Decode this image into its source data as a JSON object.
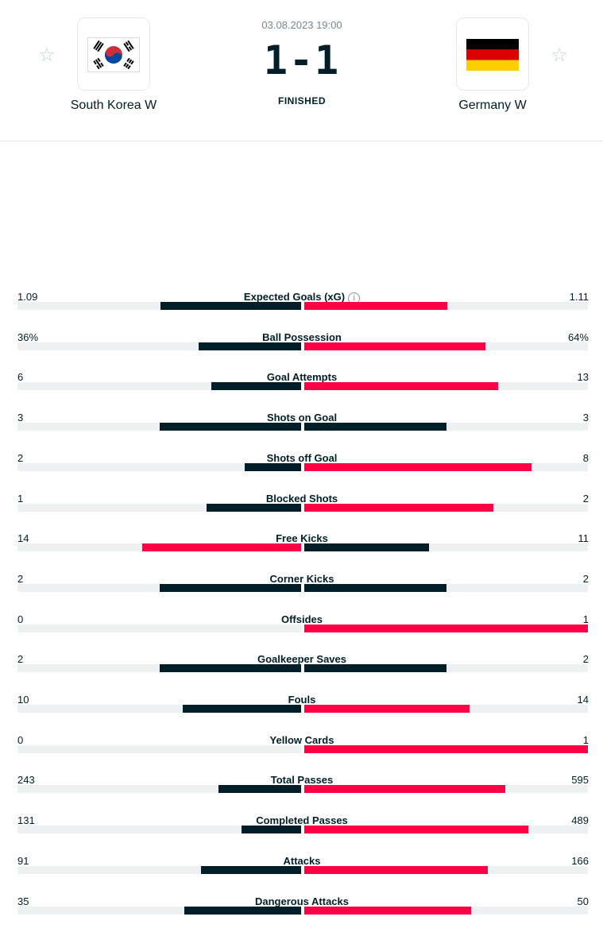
{
  "match": {
    "datetime": "03.08.2023 19:00",
    "score_home": "1",
    "score_sep": "-",
    "score_away": "1",
    "status": "FINISHED"
  },
  "home": {
    "name": "South Korea W",
    "flag": "south-korea-flag"
  },
  "away": {
    "name": "Germany W",
    "flag": "germany-flag"
  },
  "colors": {
    "dark": "#001e28",
    "red": "#ff0046",
    "track": "#eef0f1"
  },
  "stats": [
    {
      "category": "Expected Goals (xG)",
      "home": "1.09",
      "away": "1.11",
      "home_share": 0.495,
      "away_share": 0.505,
      "info": true
    },
    {
      "category": "Ball Possession",
      "home": "36%",
      "away": "64%",
      "home_share": 0.36,
      "away_share": 0.64
    },
    {
      "category": "Goal Attempts",
      "home": "6",
      "away": "13",
      "home_share": 0.316,
      "away_share": 0.684
    },
    {
      "category": "Shots on Goal",
      "home": "3",
      "away": "3",
      "home_share": 0.5,
      "away_share": 0.5
    },
    {
      "category": "Shots off Goal",
      "home": "2",
      "away": "8",
      "home_share": 0.2,
      "away_share": 0.8
    },
    {
      "category": "Blocked Shots",
      "home": "1",
      "away": "2",
      "home_share": 0.333,
      "away_share": 0.667
    },
    {
      "category": "Free Kicks",
      "home": "14",
      "away": "11",
      "home_share": 0.56,
      "away_share": 0.44
    },
    {
      "category": "Corner Kicks",
      "home": "2",
      "away": "2",
      "home_share": 0.5,
      "away_share": 0.5
    },
    {
      "category": "Offsides",
      "home": "0",
      "away": "1",
      "home_share": 0.0,
      "away_share": 1.0
    },
    {
      "category": "Goalkeeper Saves",
      "home": "2",
      "away": "2",
      "home_share": 0.5,
      "away_share": 0.5
    },
    {
      "category": "Fouls",
      "home": "10",
      "away": "14",
      "home_share": 0.417,
      "away_share": 0.583
    },
    {
      "category": "Yellow Cards",
      "home": "0",
      "away": "1",
      "home_share": 0.0,
      "away_share": 1.0
    },
    {
      "category": "Total Passes",
      "home": "243",
      "away": "595",
      "home_share": 0.29,
      "away_share": 0.71
    },
    {
      "category": "Completed Passes",
      "home": "131",
      "away": "489",
      "home_share": 0.211,
      "away_share": 0.789
    },
    {
      "category": "Attacks",
      "home": "91",
      "away": "166",
      "home_share": 0.354,
      "away_share": 0.646
    },
    {
      "category": "Dangerous Attacks",
      "home": "35",
      "away": "50",
      "home_share": 0.412,
      "away_share": 0.588
    }
  ]
}
